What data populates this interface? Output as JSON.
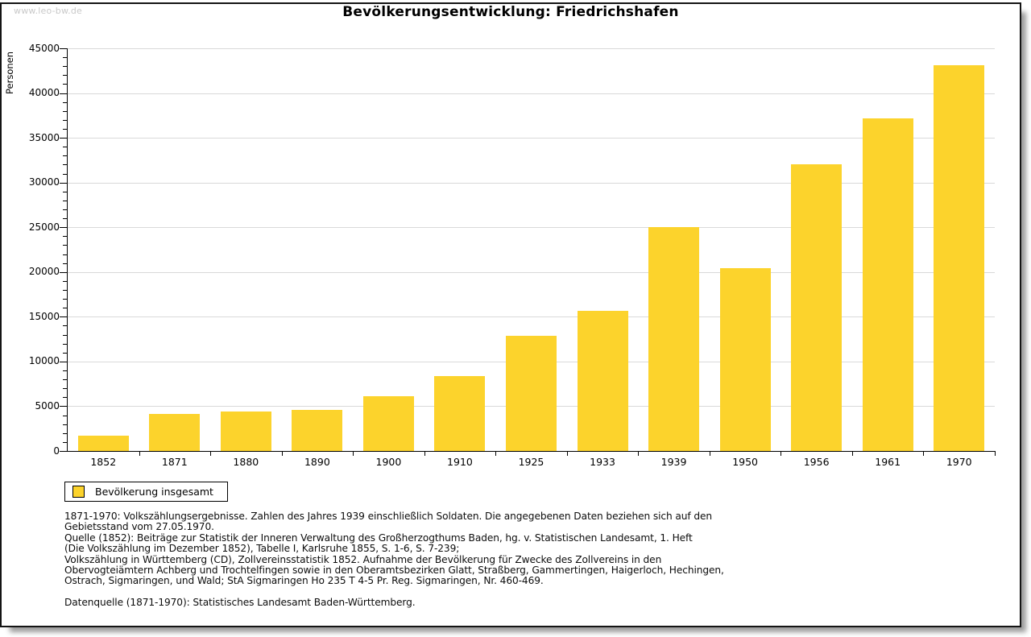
{
  "watermark": "www.leo-bw.de",
  "title": "Bevölkerungsentwicklung: Friedrichshafen",
  "legend": {
    "label": "Bevölkerung insgesamt"
  },
  "colors": {
    "bar": "#fcd32c",
    "grid": "#d9d9d9",
    "axis": "#000000",
    "watermark": "#c9c9c9",
    "window_border": "#141414",
    "shadow": "#9b9b9b"
  },
  "chart_data": {
    "type": "bar",
    "title": "Bevölkerungsentwicklung: Friedrichshafen",
    "ylabel": "Personen",
    "xlabel": "",
    "categories": [
      "1852",
      "1871",
      "1880",
      "1890",
      "1900",
      "1910",
      "1925",
      "1933",
      "1939",
      "1950",
      "1956",
      "1961",
      "1970"
    ],
    "series": [
      {
        "name": "Bevölkerung insgesamt",
        "values": [
          1750,
          4150,
          4400,
          4550,
          6150,
          8400,
          12900,
          15650,
          25050,
          20450,
          32050,
          37200,
          43100
        ]
      }
    ],
    "ylim": [
      0,
      45000
    ],
    "ytick_step": 5000,
    "ytick_minor_step": 1000,
    "grid": "horizontal-major",
    "legend_position": "bottom-left"
  },
  "footnotes": {
    "lines": [
      "1871-1970: Volkszählungsergebnisse. Zahlen des Jahres 1939 einschließlich Soldaten. Die angegebenen Daten beziehen sich auf den",
      "Gebietsstand vom 27.05.1970.",
      "Quelle (1852): Beiträge zur Statistik der Inneren Verwaltung des Großherzogthums Baden, hg. v. Statistischen Landesamt, 1. Heft",
      "(Die Volkszählung im Dezember 1852), Tabelle I, Karlsruhe 1855, S. 1-6, S. 7-239;",
      "Volkszählung in Württemberg (CD), Zollvereinsstatistik 1852. Aufnahme der Bevölkerung für Zwecke des Zollvereins in den",
      "Obervogteiämtern Achberg und Trochtelfingen sowie in den Oberamtsbezirken Glatt, Straßberg, Gammertingen, Haigerloch, Hechingen,",
      "Ostrach, Sigmaringen, und Wald; StA Sigmaringen Ho 235 T 4-5 Pr. Reg. Sigmaringen, Nr. 460-469."
    ],
    "datasource": "Datenquelle (1871-1970): Statistisches Landesamt Baden-Württemberg."
  }
}
